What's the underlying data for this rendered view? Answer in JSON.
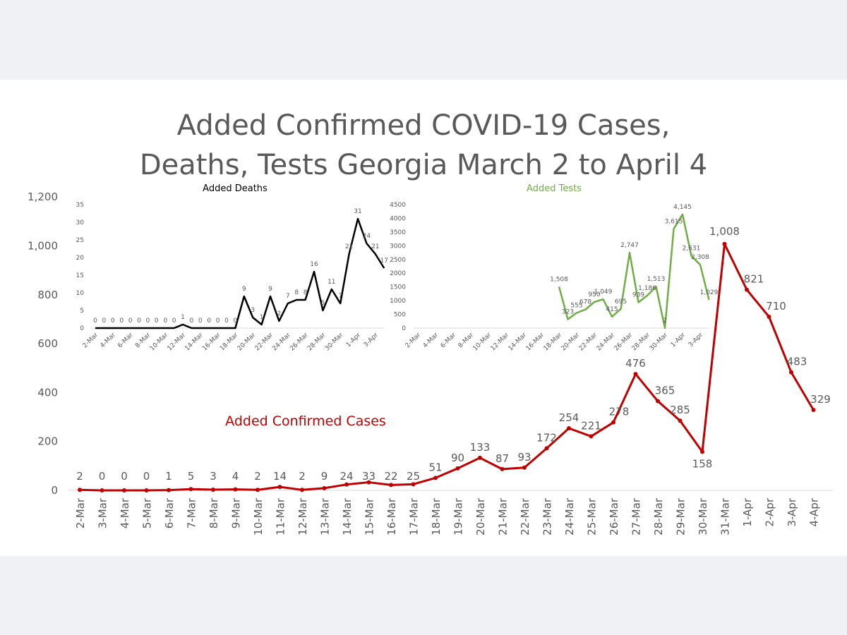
{
  "title_lines": [
    "Added Confirmed COVID-19 Cases,",
    "Deaths, Tests Georgia March 2 to April 4"
  ],
  "colors": {
    "cases": "#c00000",
    "deaths": "#000000",
    "tests": "#70ad47",
    "axis_text": "#595959"
  },
  "chart_data": [
    {
      "type": "line",
      "title": "Added Confirmed Cases",
      "yticks": [
        "0",
        "200",
        "400",
        "600",
        "800",
        "1,000",
        "1,200"
      ],
      "ylim": [
        0,
        1200
      ],
      "x": [
        "2-Mar",
        "3-Mar",
        "4-Mar",
        "5-Mar",
        "6-Mar",
        "7-Mar",
        "8-Mar",
        "9-Mar",
        "10-Mar",
        "11-Mar",
        "12-Mar",
        "13-Mar",
        "14-Mar",
        "15-Mar",
        "16-Mar",
        "17-Mar",
        "18-Mar",
        "19-Mar",
        "20-Mar",
        "21-Mar",
        "22-Mar",
        "23-Mar",
        "24-Mar",
        "25-Mar",
        "26-Mar",
        "27-Mar",
        "28-Mar",
        "29-Mar",
        "30-Mar",
        "31-Mar",
        "1-Apr",
        "2-Apr",
        "3-Apr",
        "4-Apr"
      ],
      "values": [
        2,
        0,
        0,
        0,
        1,
        5,
        3,
        4,
        2,
        14,
        2,
        9,
        24,
        33,
        22,
        25,
        51,
        90,
        133,
        87,
        93,
        172,
        254,
        221,
        278,
        476,
        365,
        285,
        158,
        1008,
        821,
        710,
        483,
        329
      ],
      "labels": [
        "2",
        "0",
        "0",
        "0",
        "1",
        "5",
        "3",
        "4",
        "2",
        "14",
        "2",
        "9",
        "24",
        "33",
        "22",
        "25",
        "51",
        "90",
        "133",
        "87",
        "93",
        "172",
        "254",
        "221",
        "278",
        "476",
        "365",
        "285",
        "158",
        "1,008",
        "821",
        "710",
        "483",
        "329"
      ]
    },
    {
      "type": "line",
      "title": "Added Deaths",
      "yticks": [
        "0",
        "5",
        "10",
        "15",
        "20",
        "25",
        "30",
        "35"
      ],
      "ylim": [
        0,
        35
      ],
      "xticks": [
        "2-Mar",
        "4-Mar",
        "6-Mar",
        "8-Mar",
        "10-Mar",
        "12-Mar",
        "14-Mar",
        "16-Mar",
        "18-Mar",
        "20-Mar",
        "22-Mar",
        "24-Mar",
        "26-Mar",
        "28-Mar",
        "30-Mar",
        "1-Apr",
        "3-Apr"
      ],
      "values": [
        0,
        0,
        0,
        0,
        0,
        0,
        0,
        0,
        0,
        0,
        1,
        0,
        0,
        0,
        0,
        0,
        0,
        9,
        3,
        1,
        9,
        2,
        7,
        8,
        8,
        16,
        5,
        11,
        7,
        21,
        31,
        24,
        21,
        17
      ],
      "labels": [
        "0",
        "0",
        "0",
        "0",
        "0",
        "0",
        "0",
        "0",
        "0",
        "0",
        "1",
        "0",
        "0",
        "0",
        "0",
        "0",
        "0",
        "9",
        "3",
        "1",
        "9",
        "2",
        "7",
        "8",
        "8",
        "16",
        "5",
        "11",
        "7",
        "21",
        "31",
        "24",
        "21",
        "17"
      ]
    },
    {
      "type": "line",
      "title": "Added Tests",
      "yticks": [
        "0",
        "500",
        "1000",
        "1500",
        "2000",
        "2500",
        "3000",
        "3500",
        "4000",
        "4500"
      ],
      "ylim": [
        0,
        4500
      ],
      "xticks": [
        "2-Mar",
        "4-Mar",
        "6-Mar",
        "8-Mar",
        "10-Mar",
        "12-Mar",
        "14-Mar",
        "16-Mar",
        "18-Mar",
        "20-Mar",
        "22-Mar",
        "24-Mar",
        "26-Mar",
        "28-Mar",
        "30-Mar",
        "1-Apr",
        "3-Apr"
      ],
      "start_index": 16,
      "values": [
        1508,
        323,
        555,
        678,
        950,
        1049,
        415,
        695,
        2747,
        939,
        1186,
        1513,
        2,
        3615,
        4145,
        2631,
        2308,
        1029
      ],
      "labels": [
        "1,508",
        "323",
        "555",
        "678",
        "950",
        "1,049",
        "415",
        "695",
        "2,747",
        "939",
        "1,186",
        "1,513",
        "2",
        "3,615",
        "4,145",
        "2,631",
        "2,308",
        "1,029"
      ]
    }
  ]
}
